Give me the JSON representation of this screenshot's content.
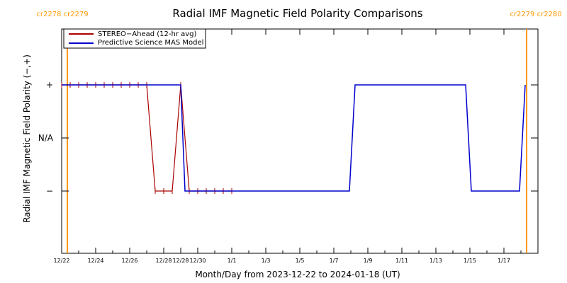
{
  "chart_data": {
    "type": "line",
    "title": "Radial IMF Magnetic Field Polarity Comparisons",
    "xlabel": "Month/Day from 2023-12-22 to 2024-01-18 (UT)",
    "ylabel": "Radial IMF Magnetic Field Polarity (−,+)",
    "x_range": [
      "2023-12-22",
      "2024-01-18"
    ],
    "xtick_labels": [
      "12/22",
      "12/24",
      "12/26",
      "12/28",
      "12/28",
      "12/30",
      "1/1",
      "1/3",
      "1/5",
      "1/7",
      "1/9",
      "1/11",
      "1/13",
      "1/15",
      "1/17"
    ],
    "ytick_labels": [
      "+",
      "N/A",
      "−"
    ],
    "y_categories": [
      "−",
      "N/A",
      "+"
    ],
    "legend_position": "top-left",
    "carrington_markers": [
      {
        "labels": "cr2278 cr2279",
        "date": "2023-12-22T08:00",
        "color": "#ff9900"
      },
      {
        "labels": "cr2279 cr2280",
        "date": "2024-01-18T08:00",
        "color": "#ff9900"
      }
    ],
    "series": [
      {
        "name": "STEREO−Ahead (12-hr avg)",
        "color": "#aa0000",
        "x": [
          "2023-12-22T00:00",
          "2023-12-22T12:00",
          "2023-12-23T00:00",
          "2023-12-23T12:00",
          "2023-12-24T00:00",
          "2023-12-24T12:00",
          "2023-12-25T00:00",
          "2023-12-25T12:00",
          "2023-12-26T00:00",
          "2023-12-26T12:00",
          "2023-12-27T00:00",
          "2023-12-27T12:00",
          "2023-12-28T00:00",
          "2023-12-28T12:00",
          "2023-12-29T00:00",
          "2023-12-29T12:00",
          "2023-12-30T00:00",
          "2023-12-30T12:00",
          "2023-12-31T00:00",
          "2023-12-31T12:00",
          "2024-01-01T00:00"
        ],
        "y": [
          "+",
          "+",
          "+",
          "+",
          "+",
          "+",
          "+",
          "+",
          "+",
          "+",
          "+",
          "−",
          "−",
          "−",
          "+",
          "−",
          "−",
          "−",
          "−",
          "−",
          "−"
        ]
      },
      {
        "name": "Predictive Science MAS Model",
        "color": "#0000cc",
        "x": [
          "2023-12-22T00:00",
          "2023-12-29T00:00",
          "2023-12-29T06:00",
          "2024-01-07T22:00",
          "2024-01-08T06:00",
          "2024-01-14T18:00",
          "2024-01-15T02:00",
          "2024-01-17T22:00",
          "2024-01-18T06:00"
        ],
        "y": [
          "+",
          "+",
          "−",
          "−",
          "+",
          "+",
          "−",
          "−",
          "+"
        ]
      }
    ]
  },
  "colors": {
    "axes": "#000000",
    "background": "#ffffff"
  }
}
